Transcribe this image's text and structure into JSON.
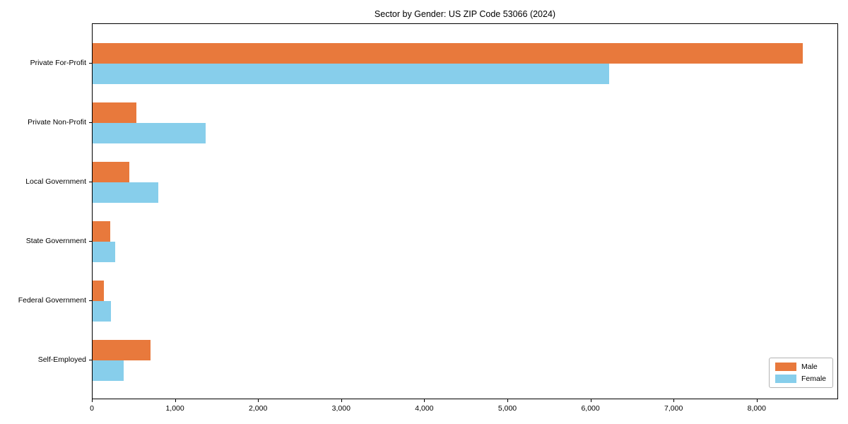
{
  "title": "Sector by Gender: US ZIP Code 53066 (2024)",
  "colors": {
    "male": "#E8793C",
    "female": "#87CEEB",
    "axis": "#000000",
    "legend_border": "#b3b3b3",
    "background": "#ffffff"
  },
  "chart_data": {
    "type": "bar",
    "orientation": "horizontal",
    "title": "Sector by Gender: US ZIP Code 53066 (2024)",
    "xlabel": "",
    "ylabel": "",
    "categories": [
      "Private For-Profit",
      "Private Non-Profit",
      "Local Government",
      "State Government",
      "Federal Government",
      "Self-Employed"
    ],
    "series": [
      {
        "name": "Male",
        "color": "#E8793C",
        "values": [
          8550,
          530,
          440,
          215,
          135,
          700
        ]
      },
      {
        "name": "Female",
        "color": "#87CEEB",
        "values": [
          6220,
          1360,
          790,
          270,
          220,
          375
        ]
      }
    ],
    "xlim": [
      0,
      8980
    ],
    "x_ticks": [
      0,
      1000,
      2000,
      3000,
      4000,
      5000,
      6000,
      7000,
      8000
    ],
    "x_tick_labels": [
      "0",
      "1,000",
      "2,000",
      "3,000",
      "4,000",
      "5,000",
      "6,000",
      "7,000",
      "8,000"
    ],
    "grid": false,
    "legend_position": "lower right"
  },
  "legend": {
    "items": [
      {
        "label": "Male"
      },
      {
        "label": "Female"
      }
    ]
  }
}
